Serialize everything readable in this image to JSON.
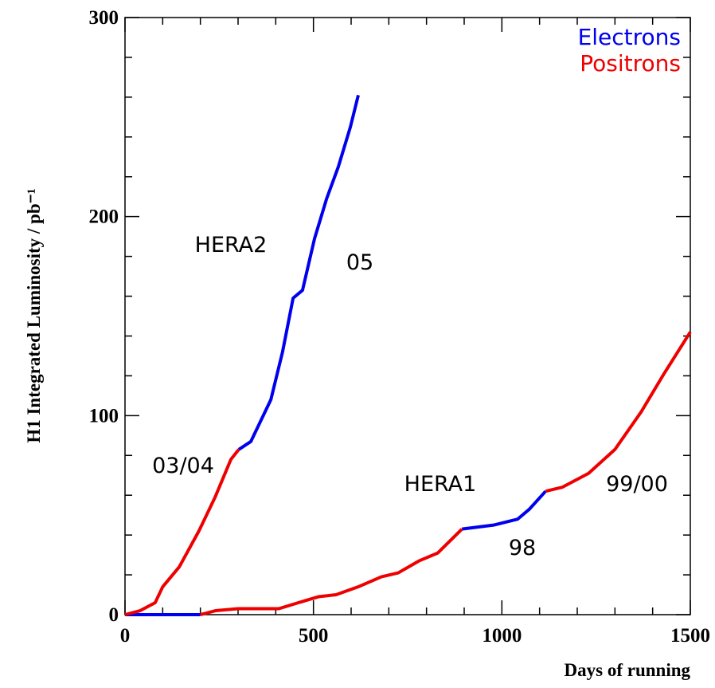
{
  "chart_data": {
    "type": "line",
    "xlabel": "Days of running",
    "ylabel": "H1 Integrated Luminosity / pb⁻¹",
    "xlim": [
      0,
      1500
    ],
    "xticks": [
      0,
      500,
      1000,
      1500
    ],
    "ylim": [
      0,
      300
    ],
    "yticks": [
      0,
      100,
      200,
      300
    ],
    "legend": "upper right",
    "annotations": [
      "HERA2",
      "05",
      "03/04",
      "HERA1",
      "99/00",
      "98"
    ],
    "series": [
      {
        "name": "Electrons",
        "color": "#0000ee",
        "x": [
          0,
          100,
          200,
          null,
          894,
          978,
          1042,
          1073,
          1116,
          null,
          302,
          334,
          387,
          418,
          446,
          471,
          503,
          535,
          566,
          598,
          619
        ],
        "values": [
          0,
          0,
          0,
          null,
          43,
          45,
          48,
          53,
          62,
          null,
          83,
          87,
          108,
          132,
          159,
          163,
          189,
          209,
          225,
          245,
          261
        ]
      },
      {
        "name": "Positrons",
        "color": "#ee0000",
        "x": [
          0,
          40,
          80,
          100,
          144,
          196,
          239,
          281,
          302,
          null,
          200,
          240,
          300,
          408,
          460,
          513,
          560,
          619,
          680,
          725,
          780,
          830,
          894,
          null,
          1116,
          1160,
          1230,
          1300,
          1370,
          1430,
          1500
        ],
        "values": [
          0,
          2,
          6,
          14,
          24,
          42,
          59,
          78,
          83,
          null,
          0,
          2,
          3,
          3,
          6,
          9,
          10,
          14,
          19,
          21,
          27,
          31,
          43,
          null,
          62,
          64,
          71,
          83,
          102,
          121,
          142
        ]
      }
    ]
  }
}
